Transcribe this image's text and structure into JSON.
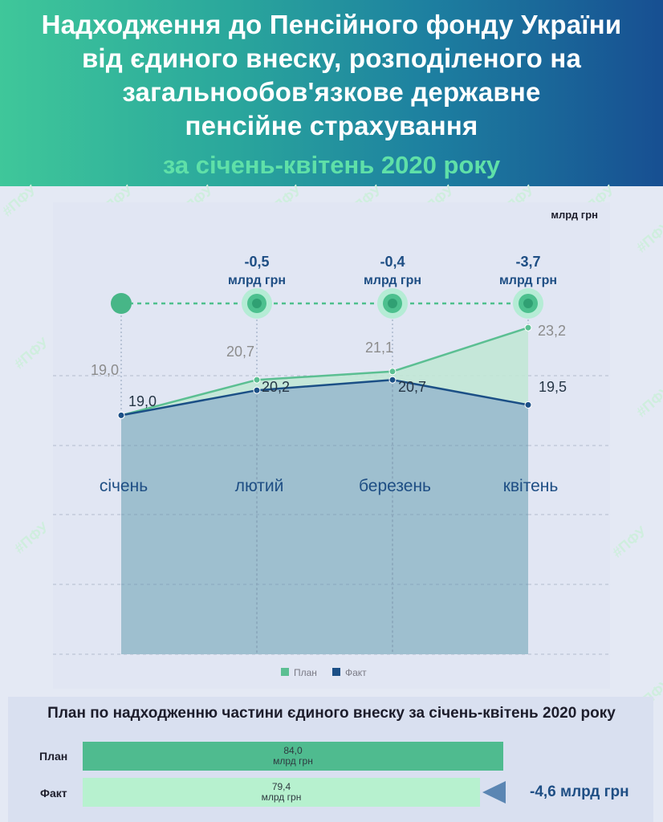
{
  "header": {
    "title": "Надходження до Пенсійного фонду України\nвід єдиного внеску, розподіленого на\nзагальнообов'язкове державне\nпенсійне страхування",
    "subtitle": "за січень-квітень 2020 року"
  },
  "watermark": "#ПФУ",
  "colors": {
    "plan": "#5bbf92",
    "fact": "#1b4f86",
    "fact_fill": "#9ebfcf",
    "plan_fill": "#bfe6d3",
    "accent": "#1e4e84"
  },
  "chart_data": [
    {
      "type": "line",
      "unit": "млрд грн",
      "categories": [
        "січень",
        "лютий",
        "березень",
        "квітень"
      ],
      "series": [
        {
          "name": "План",
          "values": [
            19.0,
            20.7,
            21.1,
            23.2
          ],
          "labels": [
            "19,0",
            "20,7",
            "21,1",
            "23,2"
          ]
        },
        {
          "name": "Факт",
          "values": [
            19.0,
            20.2,
            20.7,
            19.5
          ],
          "labels": [
            "19,0",
            "20,2",
            "20,7",
            "19,5"
          ]
        }
      ],
      "differences": [
        {
          "value": "-0,5",
          "unit": "млрд грн"
        },
        {
          "value": "-0,4",
          "unit": "млрд грн"
        },
        {
          "value": "-3,7",
          "unit": "млрд грн"
        }
      ],
      "legend": [
        "План",
        "Факт"
      ],
      "legend_position": "bottom-center",
      "grid": true
    },
    {
      "type": "bar",
      "title": "План по надходженню частини єдиного внеску за січень-квітень 2020 року",
      "categories": [
        "План",
        "Факт"
      ],
      "values": [
        84.0,
        79.4
      ],
      "value_labels": [
        "84,0",
        "79,4"
      ],
      "unit": "млрд грн",
      "difference": "-4,6 млрд грн"
    }
  ]
}
